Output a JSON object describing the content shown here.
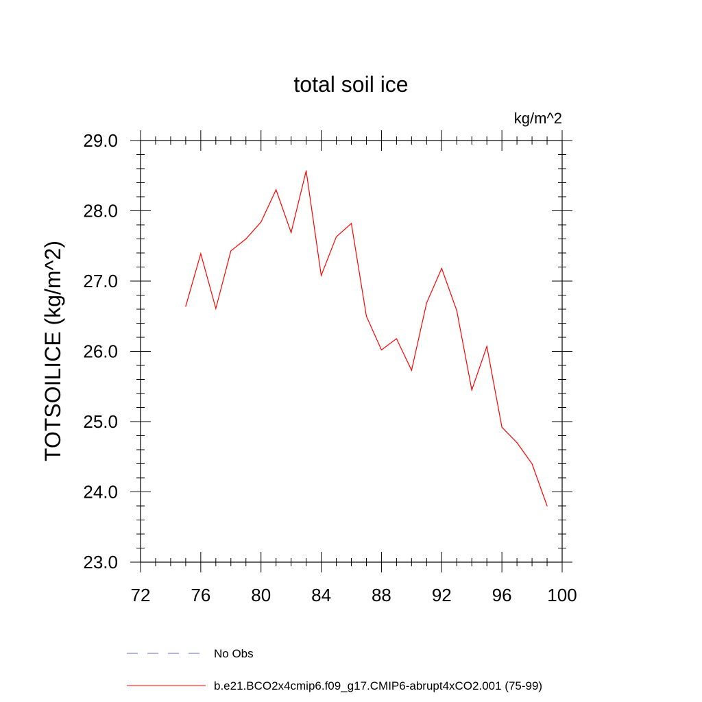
{
  "chart_data": {
    "type": "line",
    "title": "total soil ice",
    "units": "kg/m^2",
    "ylabel": "TOTSOILICE  (kg/m^2)",
    "xlabel": "",
    "xlim": [
      72,
      100
    ],
    "ylim": [
      23.0,
      29.0
    ],
    "x_ticks": [
      "72",
      "76",
      "80",
      "84",
      "88",
      "92",
      "96",
      "100"
    ],
    "y_ticks": [
      "23.0",
      "24.0",
      "25.0",
      "26.0",
      "27.0",
      "28.0",
      "29.0"
    ],
    "grid": false,
    "series": [
      {
        "name": "b.e21.BCO2x4cmip6.f09_g17.CMIP6-abrupt4xCO2.001 (75-99)",
        "color": "#ff0000",
        "x": [
          75,
          76,
          77,
          78,
          79,
          80,
          81,
          82,
          83,
          84,
          85,
          86,
          87,
          88,
          89,
          90,
          91,
          92,
          93,
          94,
          95,
          96,
          97,
          98,
          99
        ],
        "y": [
          26.64,
          27.39,
          26.61,
          27.43,
          27.6,
          27.84,
          28.3,
          27.69,
          28.57,
          27.08,
          27.63,
          27.82,
          26.5,
          26.02,
          26.18,
          25.73,
          26.69,
          27.18,
          26.58,
          25.45,
          26.07,
          24.92,
          24.7,
          24.4,
          23.8
        ]
      }
    ],
    "legend": {
      "placement": "bottom",
      "entries": [
        {
          "label": "No Obs",
          "color": "#6666bb",
          "style": "dashed"
        },
        {
          "label": "b.e21.BCO2x4cmip6.f09_g17.CMIP6-abrupt4xCO2.001 (75-99)",
          "color": "#ff0000",
          "style": "solid"
        }
      ]
    }
  }
}
